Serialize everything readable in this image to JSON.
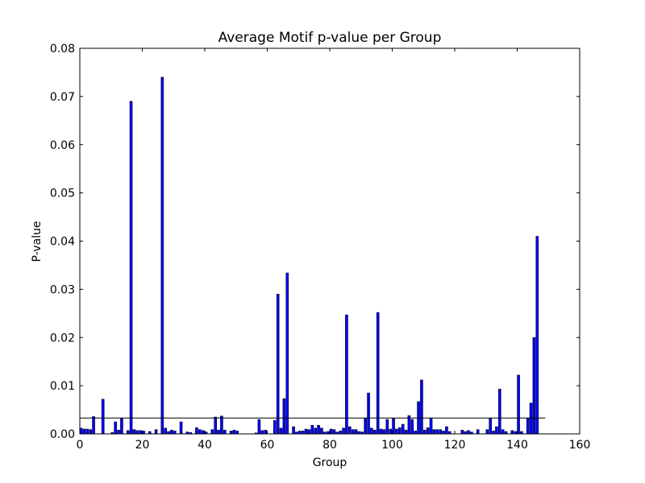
{
  "chart_data": {
    "type": "bar",
    "title": "Average Motif p-value per Group",
    "xlabel": "Group",
    "ylabel": "P-value",
    "x": [
      0,
      1,
      2,
      3,
      4,
      5,
      6,
      7,
      8,
      9,
      10,
      11,
      12,
      13,
      14,
      15,
      16,
      17,
      18,
      19,
      20,
      21,
      22,
      23,
      24,
      25,
      26,
      27,
      28,
      29,
      30,
      31,
      32,
      33,
      34,
      35,
      36,
      37,
      38,
      39,
      40,
      41,
      42,
      43,
      44,
      45,
      46,
      47,
      48,
      49,
      50,
      51,
      52,
      53,
      54,
      55,
      56,
      57,
      58,
      59,
      60,
      61,
      62,
      63,
      64,
      65,
      66,
      67,
      68,
      69,
      70,
      71,
      72,
      73,
      74,
      75,
      76,
      77,
      78,
      79,
      80,
      81,
      82,
      83,
      84,
      85,
      86,
      87,
      88,
      89,
      90,
      91,
      92,
      93,
      94,
      95,
      96,
      97,
      98,
      99,
      100,
      101,
      102,
      103,
      104,
      105,
      106,
      107,
      108,
      109,
      110,
      111,
      112,
      113,
      114,
      115,
      116,
      117,
      118,
      119,
      120,
      121,
      122,
      123,
      124,
      125,
      126,
      127,
      128,
      129,
      130,
      131,
      132,
      133,
      134,
      135,
      136,
      137,
      138,
      139,
      140,
      141,
      142,
      143,
      144,
      145,
      146
    ],
    "values": [
      0.0012,
      0.001,
      0.001,
      0.0009,
      0.0036,
      0,
      0,
      0.0072,
      0,
      0,
      0.0003,
      0.0025,
      0.0008,
      0.0032,
      0,
      0.0007,
      0.069,
      0.0009,
      0.0007,
      0.0007,
      0.0006,
      0,
      0.0005,
      0,
      0.0009,
      0,
      0.074,
      0.0012,
      0.0005,
      0.0008,
      0.0006,
      0,
      0.0025,
      0,
      0.0004,
      0.0003,
      0,
      0.0013,
      0.0009,
      0.0007,
      0.0004,
      0,
      0.0009,
      0.0035,
      0.0008,
      0.0037,
      0.0008,
      0,
      0.0006,
      0.0008,
      0.0006,
      0,
      0,
      0,
      0,
      0,
      0.0002,
      0.003,
      0.0007,
      0.0008,
      0,
      0,
      0.0028,
      0.029,
      0.0012,
      0.0073,
      0.0334,
      0,
      0.0015,
      0.0004,
      0.0006,
      0.0006,
      0.001,
      0.0009,
      0.0018,
      0.0012,
      0.0018,
      0.0012,
      0.0004,
      0.0005,
      0.001,
      0.0009,
      0.0004,
      0.0006,
      0.0012,
      0.0247,
      0.0015,
      0.0009,
      0.0009,
      0.0005,
      0.0004,
      0.0032,
      0.0085,
      0.0012,
      0.0008,
      0.0252,
      0.001,
      0.0009,
      0.003,
      0.001,
      0.0032,
      0.001,
      0.0013,
      0.002,
      0.0008,
      0.0038,
      0.003,
      0.0006,
      0.0067,
      0.0112,
      0.0008,
      0.0013,
      0.0033,
      0.0009,
      0.0009,
      0.0009,
      0.0006,
      0.0015,
      0.0005,
      0,
      0,
      0,
      0.0008,
      0.0005,
      0.0007,
      0.0004,
      0,
      0.0009,
      0,
      0,
      0.0009,
      0.0032,
      0.0006,
      0.0015,
      0.0093,
      0.0009,
      0.0005,
      0,
      0.0007,
      0.0005,
      0.0122,
      0.0005,
      0,
      0.0033,
      0.0064,
      0.02,
      0.041
    ],
    "color": "#0000ff",
    "bar_width": 0.8,
    "align": "edge",
    "hline": {
      "y": 0.0033,
      "xmin": 0,
      "xmax": 149,
      "color": "#000000"
    },
    "xlim": [
      0,
      160
    ],
    "xticks": [
      0,
      20,
      40,
      60,
      80,
      100,
      120,
      140,
      160
    ],
    "ylim": [
      0,
      0.08
    ],
    "yticks": [
      {
        "value": 0,
        "label": "0.00"
      },
      0.01,
      0.02,
      0.03,
      0.04,
      0.05,
      0.06,
      0.07,
      0.08
    ],
    "grid": false
  }
}
